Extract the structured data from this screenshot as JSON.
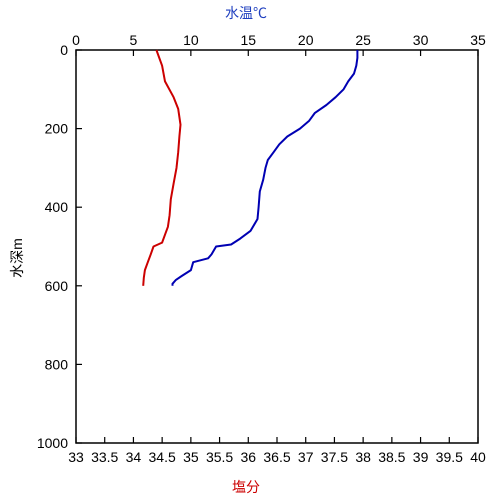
{
  "chart_data": {
    "type": "line",
    "title": "",
    "top_axis": {
      "label": "水温℃",
      "label_color": "#1f3fbf",
      "range": [
        0,
        35
      ],
      "ticks": [
        "0",
        "5",
        "10",
        "15",
        "20",
        "25",
        "30",
        "35"
      ]
    },
    "bottom_axis": {
      "label": "塩分",
      "label_color": "#cc0000",
      "range": [
        33,
        40
      ],
      "ticks": [
        "33",
        "33.5",
        "34",
        "34.5",
        "35",
        "35.5",
        "36",
        "36.5",
        "37",
        "37.5",
        "38",
        "38.5",
        "39",
        "39.5",
        "40"
      ]
    },
    "left_axis": {
      "label": "水深m",
      "range": [
        0,
        1000
      ],
      "inverted": true,
      "ticks": [
        "0",
        "200",
        "400",
        "600",
        "800",
        "1000"
      ]
    },
    "grid": false,
    "legend": "none",
    "series": [
      {
        "axis": "top",
        "color": "#0000b3",
        "points": [
          [
            24.5,
            0
          ],
          [
            24.5,
            20
          ],
          [
            24.4,
            40
          ],
          [
            24.2,
            60
          ],
          [
            23.7,
            80
          ],
          [
            23.3,
            100
          ],
          [
            22.6,
            120
          ],
          [
            21.8,
            140
          ],
          [
            20.8,
            160
          ],
          [
            20.3,
            180
          ],
          [
            19.5,
            200
          ],
          [
            18.4,
            220
          ],
          [
            17.7,
            240
          ],
          [
            17.2,
            260
          ],
          [
            16.7,
            280
          ],
          [
            16.5,
            300
          ],
          [
            16.3,
            330
          ],
          [
            16.0,
            360
          ],
          [
            15.9,
            400
          ],
          [
            15.8,
            430
          ],
          [
            15.2,
            460
          ],
          [
            14.3,
            480
          ],
          [
            13.5,
            495
          ],
          [
            12.2,
            500
          ],
          [
            11.8,
            520
          ],
          [
            11.5,
            530
          ],
          [
            10.2,
            540
          ],
          [
            10.0,
            560
          ],
          [
            9.2,
            575
          ],
          [
            8.7,
            585
          ],
          [
            8.4,
            595
          ],
          [
            8.4,
            600
          ]
        ]
      },
      {
        "axis": "bottom",
        "color": "#cc0000",
        "points": [
          [
            34.4,
            0
          ],
          [
            34.5,
            40
          ],
          [
            34.55,
            80
          ],
          [
            34.7,
            120
          ],
          [
            34.78,
            150
          ],
          [
            34.82,
            190
          ],
          [
            34.8,
            220
          ],
          [
            34.78,
            260
          ],
          [
            34.75,
            300
          ],
          [
            34.7,
            340
          ],
          [
            34.65,
            380
          ],
          [
            34.63,
            420
          ],
          [
            34.6,
            450
          ],
          [
            34.55,
            470
          ],
          [
            34.5,
            490
          ],
          [
            34.35,
            500
          ],
          [
            34.3,
            520
          ],
          [
            34.25,
            540
          ],
          [
            34.2,
            560
          ],
          [
            34.18,
            580
          ],
          [
            34.17,
            600
          ]
        ]
      }
    ]
  }
}
